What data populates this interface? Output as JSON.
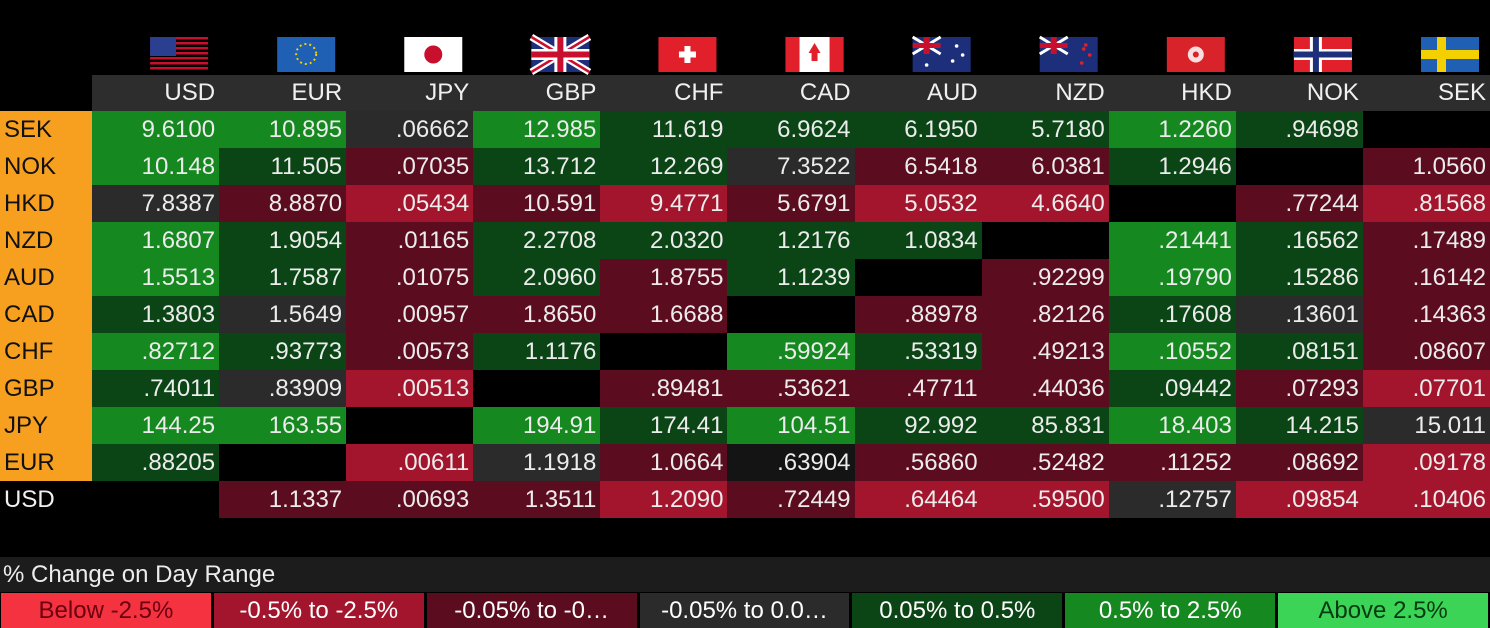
{
  "table": {
    "columns": [
      "USD",
      "EUR",
      "JPY",
      "GBP",
      "CHF",
      "CAD",
      "AUD",
      "NZD",
      "HKD",
      "NOK",
      "SEK"
    ],
    "rows": [
      {
        "label": "SEK",
        "values": [
          "9.6100",
          "10.895",
          ".06662",
          "12.985",
          "11.619",
          "6.9624",
          "6.1950",
          "5.7180",
          "1.2260",
          ".94698",
          null
        ],
        "colors": [
          "#15891f",
          "#15891f",
          "#2b2b2b",
          "#15891f",
          "#0b4516",
          "#0b4516",
          "#0b4516",
          "#0b4516",
          "#15891f",
          "#0b4516",
          null
        ]
      },
      {
        "label": "NOK",
        "values": [
          "10.148",
          "11.505",
          ".07035",
          "13.712",
          "12.269",
          "7.3522",
          "6.5418",
          "6.0381",
          "1.2946",
          null,
          "1.0560"
        ],
        "colors": [
          "#15891f",
          "#0b4516",
          "#5c0c1f",
          "#0b4516",
          "#0b4516",
          "#2b2b2b",
          "#5c0c1f",
          "#5c0c1f",
          "#0b4516",
          null,
          "#5c0c1f"
        ]
      },
      {
        "label": "HKD",
        "values": [
          "7.8387",
          "8.8870",
          ".05434",
          "10.591",
          "9.4771",
          "5.6791",
          "5.0532",
          "4.6640",
          null,
          ".77244",
          ".81568"
        ],
        "colors": [
          "#2b2b2b",
          "#5c0c1f",
          "#a3142d",
          "#5c0c1f",
          "#a3142d",
          "#5c0c1f",
          "#a3142d",
          "#a3142d",
          null,
          "#5c0c1f",
          "#a3142d"
        ]
      },
      {
        "label": "NZD",
        "values": [
          "1.6807",
          "1.9054",
          ".01165",
          "2.2708",
          "2.0320",
          "1.2176",
          "1.0834",
          null,
          ".21441",
          ".16562",
          ".17489"
        ],
        "colors": [
          "#15891f",
          "#0b4516",
          "#5c0c1f",
          "#0b4516",
          "#0b4516",
          "#0b4516",
          "#0b4516",
          null,
          "#15891f",
          "#0b4516",
          "#5c0c1f"
        ]
      },
      {
        "label": "AUD",
        "values": [
          "1.5513",
          "1.7587",
          ".01075",
          "2.0960",
          "1.8755",
          "1.1239",
          null,
          ".92299",
          ".19790",
          ".15286",
          ".16142"
        ],
        "colors": [
          "#15891f",
          "#0b4516",
          "#5c0c1f",
          "#0b4516",
          "#5c0c1f",
          "#0b4516",
          null,
          "#5c0c1f",
          "#15891f",
          "#0b4516",
          "#5c0c1f"
        ]
      },
      {
        "label": "CAD",
        "values": [
          "1.3803",
          "1.5649",
          ".00957",
          "1.8650",
          "1.6688",
          null,
          ".88978",
          ".82126",
          ".17608",
          ".13601",
          ".14363"
        ],
        "colors": [
          "#0b4516",
          "#2b2b2b",
          "#5c0c1f",
          "#5c0c1f",
          "#5c0c1f",
          null,
          "#5c0c1f",
          "#5c0c1f",
          "#0b4516",
          "#2b2b2b",
          "#5c0c1f"
        ]
      },
      {
        "label": "CHF",
        "values": [
          ".82712",
          ".93773",
          ".00573",
          "1.1176",
          null,
          ".59924",
          ".53319",
          ".49213",
          ".10552",
          ".08151",
          ".08607"
        ],
        "colors": [
          "#15891f",
          "#0b4516",
          "#5c0c1f",
          "#0b4516",
          null,
          "#15891f",
          "#0b4516",
          "#5c0c1f",
          "#15891f",
          "#0b4516",
          "#5c0c1f"
        ]
      },
      {
        "label": "GBP",
        "values": [
          ".74011",
          ".83909",
          ".00513",
          null,
          ".89481",
          ".53621",
          ".47711",
          ".44036",
          ".09442",
          ".07293",
          ".07701"
        ],
        "colors": [
          "#0b4516",
          "#2b2b2b",
          "#a3142d",
          null,
          "#5c0c1f",
          "#5c0c1f",
          "#5c0c1f",
          "#5c0c1f",
          "#0b4516",
          "#5c0c1f",
          "#a3142d"
        ]
      },
      {
        "label": "JPY",
        "values": [
          "144.25",
          "163.55",
          null,
          "194.91",
          "174.41",
          "104.51",
          "92.992",
          "85.831",
          "18.403",
          "14.215",
          "15.011"
        ],
        "colors": [
          "#15891f",
          "#15891f",
          null,
          "#15891f",
          "#0b4516",
          "#15891f",
          "#0b4516",
          "#0b4516",
          "#15891f",
          "#0b4516",
          "#2b2b2b"
        ]
      },
      {
        "label": "EUR",
        "values": [
          ".88205",
          null,
          ".00611",
          "1.1918",
          "1.0664",
          ".63904",
          ".56860",
          ".52482",
          ".11252",
          ".08692",
          ".09178"
        ],
        "colors": [
          "#0b4516",
          null,
          "#a3142d",
          "#2b2b2b",
          "#5c0c1f",
          "#141414",
          "#5c0c1f",
          "#5c0c1f",
          "#5c0c1f",
          "#5c0c1f",
          "#a3142d"
        ]
      },
      {
        "label": "USD",
        "values": [
          null,
          "1.1337",
          ".00693",
          "1.3511",
          "1.2090",
          ".72449",
          ".64464",
          ".59500",
          ".12757",
          ".09854",
          ".10406"
        ],
        "colors": [
          null,
          "#5c0c1f",
          "#5c0c1f",
          "#5c0c1f",
          "#a3142d",
          "#5c0c1f",
          "#a3142d",
          "#a3142d",
          "#2b2b2b",
          "#a3142d",
          "#a3142d"
        ]
      }
    ]
  },
  "legend": {
    "title": "% Change on Day Range",
    "items": [
      {
        "label": "Below -2.5%",
        "color": "#f5323f",
        "text_color": "#6a0010"
      },
      {
        "label": "-0.5% to -2.5%",
        "color": "#a3142d",
        "text_color": "#ffffff"
      },
      {
        "label": "-0.05% to -0…",
        "color": "#5c0c1f",
        "text_color": "#ffffff"
      },
      {
        "label": "-0.05% to 0.0…",
        "color": "#2b2b2b",
        "text_color": "#ffffff"
      },
      {
        "label": "0.05% to 0.5%",
        "color": "#0b4516",
        "text_color": "#ffffff"
      },
      {
        "label": "0.5% to 2.5%",
        "color": "#15891f",
        "text_color": "#ffffff"
      },
      {
        "label": "Above 2.5%",
        "color": "#3bd457",
        "text_color": "#063a10"
      }
    ]
  }
}
